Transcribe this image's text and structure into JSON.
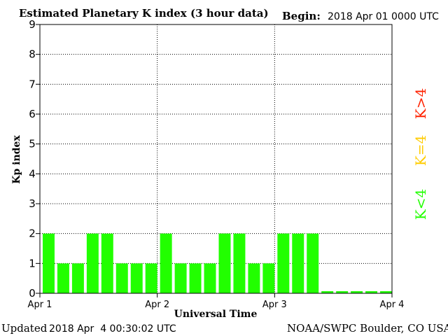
{
  "header": {
    "title": "Estimated Planetary K index (3 hour data)",
    "begin_label": "Begin:",
    "begin_value": "2018 Apr 01 0000 UTC"
  },
  "footer": {
    "updated_label": "Updated",
    "updated_value": "2018 Apr  4 00:30:02 UTC",
    "source": "NOAA/SWPC Boulder, CO USA"
  },
  "legend": {
    "high": "K>4",
    "equal": "K=4",
    "low": "K<4"
  },
  "colors": {
    "low": "#22ff00",
    "equal": "#ffcc00",
    "high": "#ff2200"
  },
  "chart_data": {
    "type": "bar",
    "title": "Estimated Planetary K index (3 hour data)",
    "xlabel": "Universal Time",
    "ylabel": "Kp index",
    "ylim": [
      0,
      9
    ],
    "yticks": [
      "0",
      "1",
      "2",
      "3",
      "4",
      "5",
      "6",
      "7",
      "8",
      "9"
    ],
    "xticks": [
      "Apr 1",
      "Apr 2",
      "Apr 3",
      "Apr 4"
    ],
    "grid": true,
    "values": [
      2,
      1,
      1,
      2,
      2,
      1,
      1,
      1,
      2,
      1,
      1,
      1,
      2,
      2,
      1,
      1,
      2,
      2,
      2,
      0,
      0,
      0,
      0,
      0
    ]
  }
}
